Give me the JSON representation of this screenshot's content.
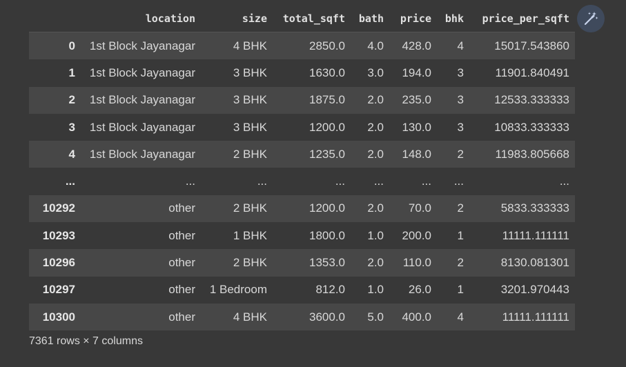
{
  "table": {
    "columns": [
      "location",
      "size",
      "total_sqft",
      "bath",
      "price",
      "bhk",
      "price_per_sqft"
    ],
    "rows": [
      {
        "index": "0",
        "cells": [
          "1st Block Jayanagar",
          "4 BHK",
          "2850.0",
          "4.0",
          "428.0",
          "4",
          "15017.543860"
        ]
      },
      {
        "index": "1",
        "cells": [
          "1st Block Jayanagar",
          "3 BHK",
          "1630.0",
          "3.0",
          "194.0",
          "3",
          "11901.840491"
        ]
      },
      {
        "index": "2",
        "cells": [
          "1st Block Jayanagar",
          "3 BHK",
          "1875.0",
          "2.0",
          "235.0",
          "3",
          "12533.333333"
        ]
      },
      {
        "index": "3",
        "cells": [
          "1st Block Jayanagar",
          "3 BHK",
          "1200.0",
          "2.0",
          "130.0",
          "3",
          "10833.333333"
        ]
      },
      {
        "index": "4",
        "cells": [
          "1st Block Jayanagar",
          "2 BHK",
          "1235.0",
          "2.0",
          "148.0",
          "2",
          "11983.805668"
        ]
      },
      {
        "index": "...",
        "cells": [
          "...",
          "...",
          "...",
          "...",
          "...",
          "...",
          "..."
        ]
      },
      {
        "index": "10292",
        "cells": [
          "other",
          "2 BHK",
          "1200.0",
          "2.0",
          "70.0",
          "2",
          "5833.333333"
        ]
      },
      {
        "index": "10293",
        "cells": [
          "other",
          "1 BHK",
          "1800.0",
          "1.0",
          "200.0",
          "1",
          "11111.111111"
        ]
      },
      {
        "index": "10296",
        "cells": [
          "other",
          "2 BHK",
          "1353.0",
          "2.0",
          "110.0",
          "2",
          "8130.081301"
        ]
      },
      {
        "index": "10297",
        "cells": [
          "other",
          "1 Bedroom",
          "812.0",
          "1.0",
          "26.0",
          "1",
          "3201.970443"
        ]
      },
      {
        "index": "10300",
        "cells": [
          "other",
          "4 BHK",
          "3600.0",
          "5.0",
          "400.0",
          "4",
          "11111.111111"
        ]
      }
    ]
  },
  "footer": {
    "shape_text": "7361 rows × 7 columns"
  },
  "toolbar": {
    "magic_icon": "magic-wand-icon"
  },
  "colors": {
    "background": "#383838",
    "row_stripe": "#474747",
    "button_bg": "#3f4a5c",
    "icon": "#c8d4ec"
  }
}
